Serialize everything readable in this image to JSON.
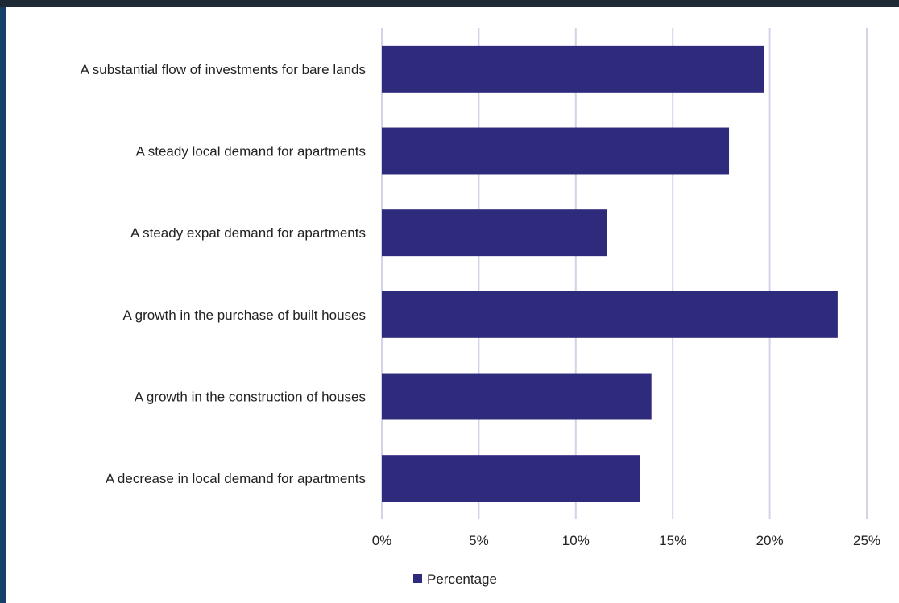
{
  "chart_data": {
    "type": "bar",
    "orientation": "horizontal",
    "categories": [
      "A substantial flow of investments for bare lands",
      "A steady local demand for apartments",
      "A steady expat demand for apartments",
      "A growth in the purchase of built houses",
      "A growth in the construction of houses",
      "A decrease in local demand for apartments"
    ],
    "series": [
      {
        "name": "Percentage",
        "values": [
          19.7,
          17.9,
          11.6,
          23.5,
          13.9,
          13.3
        ]
      }
    ],
    "xlim": [
      0,
      25
    ],
    "xticks": [
      0,
      5,
      10,
      15,
      20,
      25
    ],
    "xtick_labels": [
      "0%",
      "5%",
      "10%",
      "15%",
      "20%",
      "25%"
    ],
    "grid": true,
    "legend_position": "bottom",
    "colors": {
      "bar": "#2e2a7c",
      "grid": "#d3d3e8"
    }
  }
}
